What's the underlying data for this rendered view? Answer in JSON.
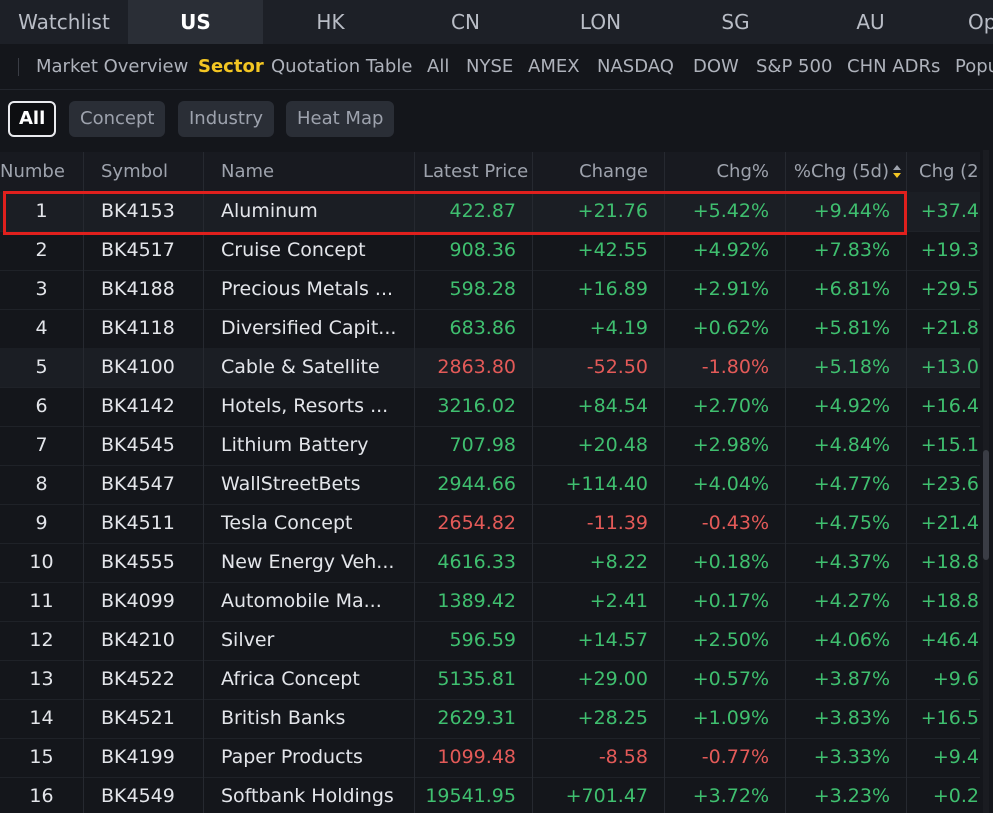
{
  "market_tabs": [
    {
      "label": "Watchlist"
    },
    {
      "label": "US"
    },
    {
      "label": "HK"
    },
    {
      "label": "CN"
    },
    {
      "label": "LON"
    },
    {
      "label": "SG"
    },
    {
      "label": "AU"
    },
    {
      "label": "Op"
    }
  ],
  "sub_nav": [
    {
      "label": "Market Overview"
    },
    {
      "label": "Sector"
    },
    {
      "label": "Quotation Table"
    },
    {
      "label": "All"
    },
    {
      "label": "NYSE"
    },
    {
      "label": "AMEX"
    },
    {
      "label": "NASDAQ"
    },
    {
      "label": "DOW"
    },
    {
      "label": "S&P 500"
    },
    {
      "label": "CHN ADRs"
    },
    {
      "label": "Popu"
    }
  ],
  "filters": [
    {
      "label": "All"
    },
    {
      "label": "Concept"
    },
    {
      "label": "Industry"
    },
    {
      "label": "Heat Map"
    }
  ],
  "table": {
    "headers": [
      "Numbe",
      "Symbol",
      "Name",
      "Latest Price",
      "Change",
      "Chg%",
      "%Chg (5d)",
      "Chg (2"
    ],
    "rows": [
      {
        "num": "1",
        "symbol": "BK4153",
        "name": "Aluminum",
        "price": "422.87",
        "change": "+21.76",
        "chg": "+5.42%",
        "chg5d": "+9.44%",
        "chg20": "+37.4",
        "dir": "up"
      },
      {
        "num": "2",
        "symbol": "BK4517",
        "name": "Cruise Concept",
        "price": "908.36",
        "change": "+42.55",
        "chg": "+4.92%",
        "chg5d": "+7.83%",
        "chg20": "+19.3",
        "dir": "up"
      },
      {
        "num": "3",
        "symbol": "BK4188",
        "name": "Precious Metals ...",
        "price": "598.28",
        "change": "+16.89",
        "chg": "+2.91%",
        "chg5d": "+6.81%",
        "chg20": "+29.5",
        "dir": "up"
      },
      {
        "num": "4",
        "symbol": "BK4118",
        "name": "Diversified Capit...",
        "price": "683.86",
        "change": "+4.19",
        "chg": "+0.62%",
        "chg5d": "+5.81%",
        "chg20": "+21.8",
        "dir": "up"
      },
      {
        "num": "5",
        "symbol": "BK4100",
        "name": "Cable & Satellite",
        "price": "2863.80",
        "change": "-52.50",
        "chg": "-1.80%",
        "chg5d": "+5.18%",
        "chg20": "+13.0",
        "dir": "down"
      },
      {
        "num": "6",
        "symbol": "BK4142",
        "name": "Hotels, Resorts ...",
        "price": "3216.02",
        "change": "+84.54",
        "chg": "+2.70%",
        "chg5d": "+4.92%",
        "chg20": "+16.4",
        "dir": "up"
      },
      {
        "num": "7",
        "symbol": "BK4545",
        "name": "Lithium Battery",
        "price": "707.98",
        "change": "+20.48",
        "chg": "+2.98%",
        "chg5d": "+4.84%",
        "chg20": "+15.1",
        "dir": "up"
      },
      {
        "num": "8",
        "symbol": "BK4547",
        "name": "WallStreetBets",
        "price": "2944.66",
        "change": "+114.40",
        "chg": "+4.04%",
        "chg5d": "+4.77%",
        "chg20": "+23.6",
        "dir": "up"
      },
      {
        "num": "9",
        "symbol": "BK4511",
        "name": "Tesla Concept",
        "price": "2654.82",
        "change": "-11.39",
        "chg": "-0.43%",
        "chg5d": "+4.75%",
        "chg20": "+21.4",
        "dir": "down"
      },
      {
        "num": "10",
        "symbol": "BK4555",
        "name": "New Energy Veh...",
        "price": "4616.33",
        "change": "+8.22",
        "chg": "+0.18%",
        "chg5d": "+4.37%",
        "chg20": "+18.8",
        "dir": "up"
      },
      {
        "num": "11",
        "symbol": "BK4099",
        "name": "Automobile Ma...",
        "price": "1389.42",
        "change": "+2.41",
        "chg": "+0.17%",
        "chg5d": "+4.27%",
        "chg20": "+18.8",
        "dir": "up"
      },
      {
        "num": "12",
        "symbol": "BK4210",
        "name": "Silver",
        "price": "596.59",
        "change": "+14.57",
        "chg": "+2.50%",
        "chg5d": "+4.06%",
        "chg20": "+46.4",
        "dir": "up"
      },
      {
        "num": "13",
        "symbol": "BK4522",
        "name": "Africa Concept",
        "price": "5135.81",
        "change": "+29.00",
        "chg": "+0.57%",
        "chg5d": "+3.87%",
        "chg20": "+9.6",
        "dir": "up"
      },
      {
        "num": "14",
        "symbol": "BK4521",
        "name": "British Banks",
        "price": "2629.31",
        "change": "+28.25",
        "chg": "+1.09%",
        "chg5d": "+3.83%",
        "chg20": "+16.5",
        "dir": "up"
      },
      {
        "num": "15",
        "symbol": "BK4199",
        "name": "Paper Products",
        "price": "1099.48",
        "change": "-8.58",
        "chg": "-0.77%",
        "chg5d": "+3.33%",
        "chg20": "+9.4",
        "dir": "down"
      },
      {
        "num": "16",
        "symbol": "BK4549",
        "name": "Softbank Holdings",
        "price": "19541.95",
        "change": "+701.47",
        "chg": "+3.72%",
        "chg5d": "+3.23%",
        "chg20": "+0.2",
        "dir": "up"
      }
    ]
  },
  "colors": {
    "up": "#3fbf6f",
    "down": "#e35a58",
    "accent": "#f3c623",
    "highlight": "#e0201d"
  },
  "icons": {
    "sort": "sort-desc-icon"
  }
}
